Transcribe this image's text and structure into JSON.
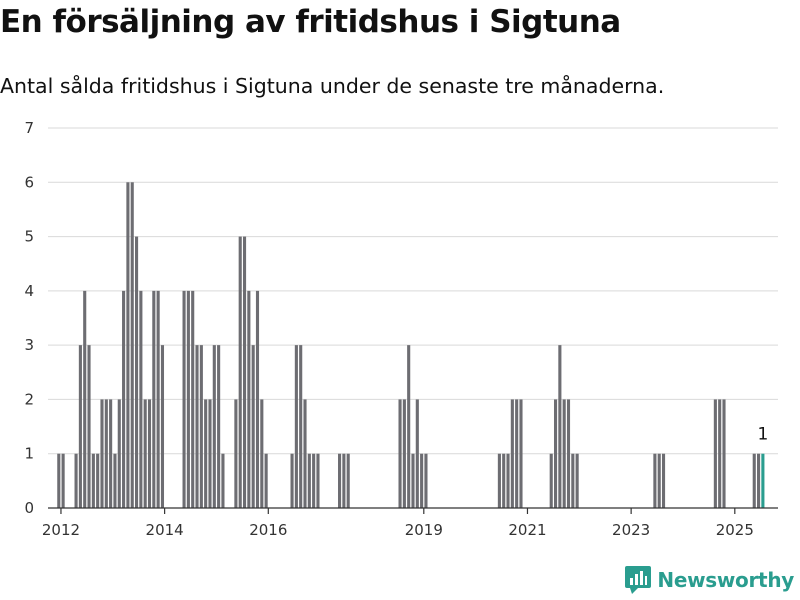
{
  "header": {
    "title": "En försäljning av fritidshus i Sigtuna",
    "subtitle": "Antal sålda fritidshus i Sigtuna under de senaste tre månaderna."
  },
  "brand": {
    "name": "Newsworthy",
    "icon": "newsworthy-logo-icon",
    "color": "#2a9d8f"
  },
  "chart_data": {
    "type": "bar",
    "title": "En försäljning av fritidshus i Sigtuna",
    "subtitle": "Antal sålda fritidshus i Sigtuna under de senaste tre månaderna.",
    "x_start": "2011-10",
    "x_end": "2025-11",
    "x_ticks": [
      {
        "label": "2012",
        "date": "2012-01"
      },
      {
        "label": "2014",
        "date": "2014-01"
      },
      {
        "label": "2016",
        "date": "2016-01"
      },
      {
        "label": "2019",
        "date": "2019-01"
      },
      {
        "label": "2021",
        "date": "2021-01"
      },
      {
        "label": "2023",
        "date": "2023-01"
      },
      {
        "label": "2025",
        "date": "2025-01"
      }
    ],
    "ylim": [
      0,
      7
    ],
    "y_ticks": [
      0,
      1,
      2,
      3,
      4,
      5,
      6,
      7
    ],
    "grid": true,
    "bar_color": "#6d6d72",
    "highlight_color": "#2a9d8f",
    "highlight_label": "1",
    "series": [
      {
        "points": [
          {
            "date": "2011-12",
            "value": 1
          },
          {
            "date": "2012-01",
            "value": 1
          },
          {
            "date": "2012-04",
            "value": 1
          },
          {
            "date": "2012-05",
            "value": 3
          },
          {
            "date": "2012-06",
            "value": 4
          },
          {
            "date": "2012-07",
            "value": 3
          },
          {
            "date": "2012-08",
            "value": 1
          },
          {
            "date": "2012-09",
            "value": 1
          },
          {
            "date": "2012-10",
            "value": 2
          },
          {
            "date": "2012-11",
            "value": 2
          },
          {
            "date": "2012-12",
            "value": 2
          },
          {
            "date": "2013-01",
            "value": 1
          },
          {
            "date": "2013-02",
            "value": 2
          },
          {
            "date": "2013-03",
            "value": 4
          },
          {
            "date": "2013-04",
            "value": 6
          },
          {
            "date": "2013-05",
            "value": 6
          },
          {
            "date": "2013-06",
            "value": 5
          },
          {
            "date": "2013-07",
            "value": 4
          },
          {
            "date": "2013-08",
            "value": 2
          },
          {
            "date": "2013-09",
            "value": 2
          },
          {
            "date": "2013-10",
            "value": 4
          },
          {
            "date": "2013-11",
            "value": 4
          },
          {
            "date": "2013-12",
            "value": 3
          },
          {
            "date": "2014-05",
            "value": 4
          },
          {
            "date": "2014-06",
            "value": 4
          },
          {
            "date": "2014-07",
            "value": 4
          },
          {
            "date": "2014-08",
            "value": 3
          },
          {
            "date": "2014-09",
            "value": 3
          },
          {
            "date": "2014-10",
            "value": 2
          },
          {
            "date": "2014-11",
            "value": 2
          },
          {
            "date": "2014-12",
            "value": 3
          },
          {
            "date": "2015-01",
            "value": 3
          },
          {
            "date": "2015-02",
            "value": 1
          },
          {
            "date": "2015-05",
            "value": 2
          },
          {
            "date": "2015-06",
            "value": 5
          },
          {
            "date": "2015-07",
            "value": 5
          },
          {
            "date": "2015-08",
            "value": 4
          },
          {
            "date": "2015-09",
            "value": 3
          },
          {
            "date": "2015-10",
            "value": 4
          },
          {
            "date": "2015-11",
            "value": 2
          },
          {
            "date": "2015-12",
            "value": 1
          },
          {
            "date": "2016-06",
            "value": 1
          },
          {
            "date": "2016-07",
            "value": 3
          },
          {
            "date": "2016-08",
            "value": 3
          },
          {
            "date": "2016-09",
            "value": 2
          },
          {
            "date": "2016-10",
            "value": 1
          },
          {
            "date": "2016-11",
            "value": 1
          },
          {
            "date": "2016-12",
            "value": 1
          },
          {
            "date": "2017-05",
            "value": 1
          },
          {
            "date": "2017-06",
            "value": 1
          },
          {
            "date": "2017-07",
            "value": 1
          },
          {
            "date": "2018-07",
            "value": 2
          },
          {
            "date": "2018-08",
            "value": 2
          },
          {
            "date": "2018-09",
            "value": 3
          },
          {
            "date": "2018-10",
            "value": 1
          },
          {
            "date": "2018-11",
            "value": 2
          },
          {
            "date": "2018-12",
            "value": 1
          },
          {
            "date": "2019-01",
            "value": 1
          },
          {
            "date": "2020-06",
            "value": 1
          },
          {
            "date": "2020-07",
            "value": 1
          },
          {
            "date": "2020-08",
            "value": 1
          },
          {
            "date": "2020-09",
            "value": 2
          },
          {
            "date": "2020-10",
            "value": 2
          },
          {
            "date": "2020-11",
            "value": 2
          },
          {
            "date": "2021-06",
            "value": 1
          },
          {
            "date": "2021-07",
            "value": 2
          },
          {
            "date": "2021-08",
            "value": 3
          },
          {
            "date": "2021-09",
            "value": 2
          },
          {
            "date": "2021-10",
            "value": 2
          },
          {
            "date": "2021-11",
            "value": 1
          },
          {
            "date": "2021-12",
            "value": 1
          },
          {
            "date": "2023-06",
            "value": 1
          },
          {
            "date": "2023-07",
            "value": 1
          },
          {
            "date": "2023-08",
            "value": 1
          },
          {
            "date": "2024-08",
            "value": 2
          },
          {
            "date": "2024-09",
            "value": 2
          },
          {
            "date": "2024-10",
            "value": 2
          },
          {
            "date": "2025-05",
            "value": 1
          },
          {
            "date": "2025-06",
            "value": 1
          },
          {
            "date": "2025-07",
            "value": 1,
            "highlight": true
          }
        ]
      }
    ]
  }
}
